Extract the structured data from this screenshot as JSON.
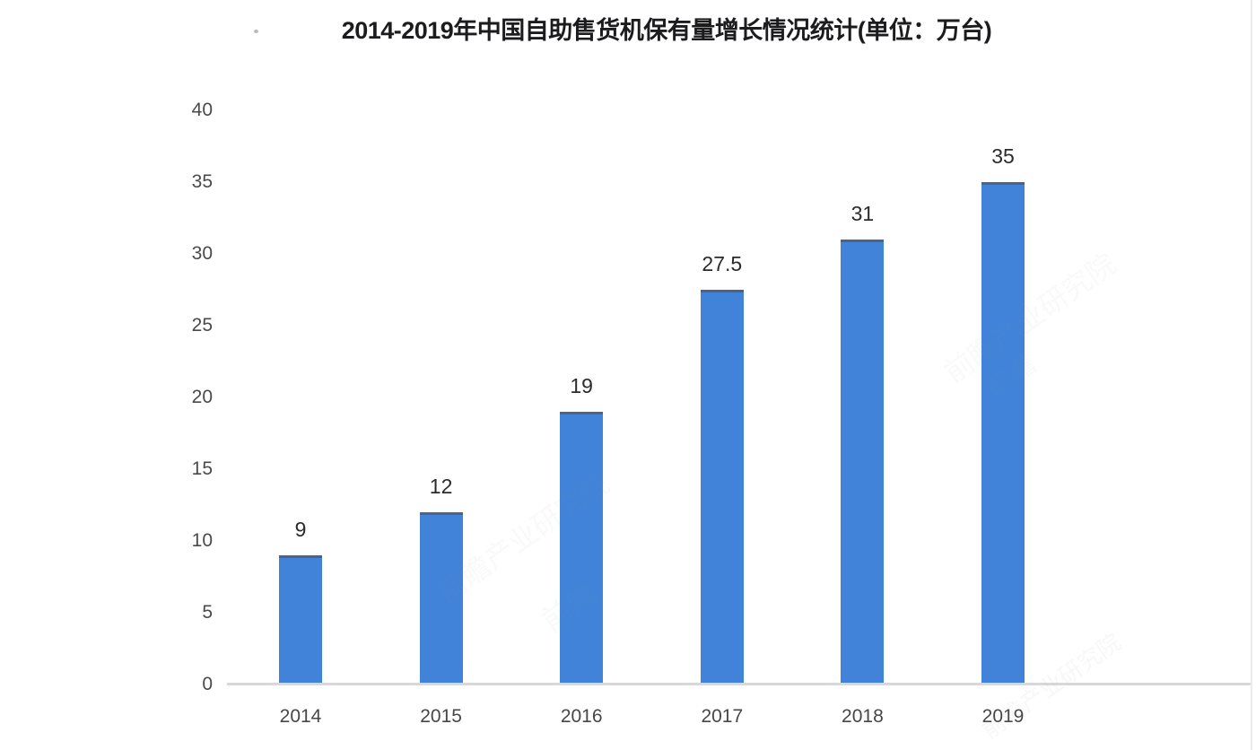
{
  "chart_data": {
    "type": "bar",
    "title": "2014-2019年中国自助售货机保有量增长情况统计(单位：万台)",
    "categories": [
      "2014",
      "2015",
      "2016",
      "2017",
      "2018",
      "2019"
    ],
    "values": [
      9,
      12,
      19,
      27.5,
      31,
      35
    ],
    "value_labels": [
      "9",
      "12",
      "19",
      "27.5",
      "31",
      "35"
    ],
    "series_name": "中国自助售货机保有量",
    "unit": "万台",
    "xlabel": "",
    "ylabel": "",
    "ylim": [
      0,
      40
    ],
    "yticks": [
      0,
      5,
      10,
      15,
      20,
      25,
      30,
      35,
      40
    ],
    "grid": false,
    "legend_position": "none",
    "bar_color": "#4083d8",
    "bar_top_edge_color": "#4d6288",
    "axis_line_color": "#d8d8d8",
    "title_color": "#1c1c1e",
    "tick_label_color": "#4a4a4a",
    "value_label_color": "#2b2b2b"
  },
  "watermark": {
    "text": "前瞻产业研究院",
    "logo_text": "前瞻"
  }
}
